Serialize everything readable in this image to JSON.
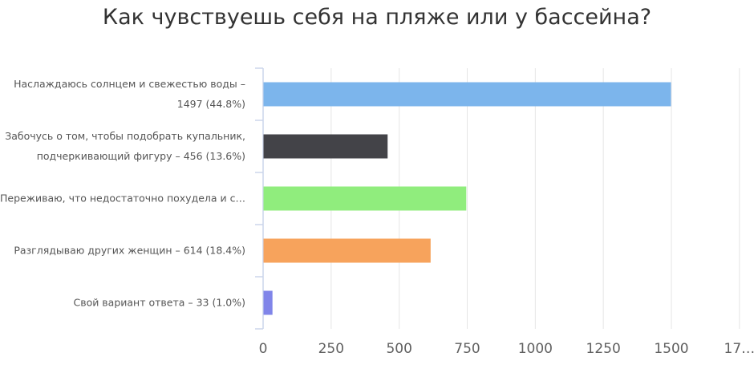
{
  "chart_data": {
    "type": "bar",
    "orientation": "horizontal",
    "title": "Как чувствуешь себя на пляже или у бассейна?",
    "categories": [
      [
        "Наслаждаюсь солнцем и свежестью воды –",
        "1497 (44.8%)"
      ],
      [
        "Забочусь о том, чтобы подобрать купальник,",
        "подчеркивающий фигуру – 456 (13.6%)"
      ],
      [
        "Переживаю, что недостаточно похудела и с…"
      ],
      [
        "Разглядываю других женщин – 614 (18.4%)"
      ],
      [
        "Свой вариант ответа – 33 (1.0%)"
      ]
    ],
    "values": [
      1497,
      456,
      745,
      614,
      33
    ],
    "colors": [
      "#7cb5ec",
      "#434348",
      "#90ed7d",
      "#f7a35c",
      "#8085e9"
    ],
    "xlim": [
      0,
      1750
    ],
    "x_ticks": [
      "0",
      "250",
      "500",
      "750",
      "1000",
      "1250",
      "1500",
      "17…"
    ],
    "x_tick_values": [
      0,
      250,
      500,
      750,
      1000,
      1250,
      1500,
      1750
    ],
    "grid": true
  },
  "colors": {
    "grid": "#e6e6e6",
    "axis": "#ccd6eb"
  }
}
